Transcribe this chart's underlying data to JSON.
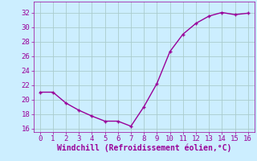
{
  "x": [
    0,
    1,
    2,
    3,
    4,
    5,
    6,
    7,
    8,
    9,
    10,
    11,
    12,
    13,
    14,
    15,
    16
  ],
  "y": [
    21.0,
    21.0,
    19.5,
    18.5,
    17.7,
    17.0,
    17.0,
    16.3,
    19.0,
    22.2,
    26.6,
    29.0,
    30.5,
    31.5,
    32.0,
    31.7,
    31.9
  ],
  "line_color": "#990099",
  "marker_color": "#990099",
  "bg_color": "#cceeff",
  "grid_color": "#aacccc",
  "xlabel": "Windchill (Refroidissement éolien,°C)",
  "xlim": [
    -0.5,
    16.5
  ],
  "ylim": [
    15.5,
    33.5
  ],
  "xticks": [
    0,
    1,
    2,
    3,
    4,
    5,
    6,
    7,
    8,
    9,
    10,
    11,
    12,
    13,
    14,
    15,
    16
  ],
  "yticks": [
    16,
    18,
    20,
    22,
    24,
    26,
    28,
    30,
    32
  ],
  "tick_color": "#990099",
  "label_color": "#990099",
  "font_size": 6.5,
  "xlabel_fontsize": 7.0,
  "line_width": 1.0,
  "marker_size": 2.5
}
